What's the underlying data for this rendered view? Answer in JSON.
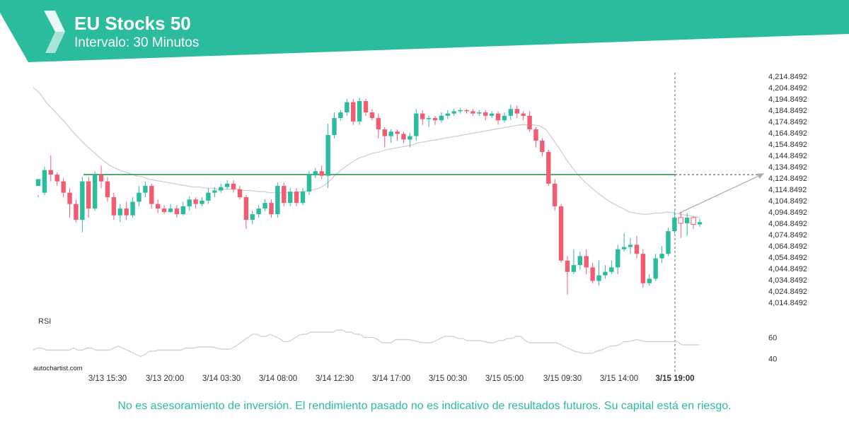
{
  "header": {
    "title": "EU Stocks 50",
    "subtitle": "Intervalo: 30 Minutos",
    "color": "#2bbb9d"
  },
  "footer": {
    "brand": "autochartist.com",
    "disclaimer": "No es asesoramiento de inversión. El rendimiento pasado no es indicativo de resultados futuros. Su capital está en riesgo."
  },
  "chart_data": {
    "type": "candlestick",
    "title": "EU Stocks 50",
    "subtitle": "Intervalo: 30 Minutos",
    "y_ticks": [
      "4,214.8492",
      "4,204.8492",
      "4,194.8492",
      "4,184.8492",
      "4,174.8492",
      "4,164.8492",
      "4,154.8492",
      "4,144.8492",
      "4,134.8492",
      "4,124.8492",
      "4,114.8492",
      "4,104.8492",
      "4,094.8492",
      "4,084.8492",
      "4,074.8492",
      "4,064.8492",
      "4,054.8492",
      "4,044.8492",
      "4,034.8492",
      "4,024.8492",
      "4,014.8492"
    ],
    "ylim": [
      4010,
      4218
    ],
    "x_ticks": [
      "3/13 15:30",
      "3/13 20:00",
      "3/14 03:30",
      "3/14 08:00",
      "3/14 12:30",
      "3/14 17:00",
      "3/15 00:30",
      "3/15 05:00",
      "3/15 09:30",
      "3/15 14:00",
      "3/15 19:00"
    ],
    "current_time_label": "3/15 19:00",
    "resistance_level": 4128,
    "projection": {
      "from": 4094,
      "to": 4129
    },
    "colors": {
      "up": "#2bbb9d",
      "down": "#f05c71",
      "level": "#3fa866",
      "ma": "#cccccc",
      "rsi": "#cccccc"
    },
    "candles": [
      [
        4118,
        4124,
        4110,
        4108
      ],
      [
        4112,
        4132,
        4135,
        4110
      ],
      [
        4132,
        4128,
        4145,
        4122
      ],
      [
        4128,
        4122,
        4130,
        4118
      ],
      [
        4122,
        4112,
        4125,
        4108
      ],
      [
        4112,
        4102,
        4116,
        4090
      ],
      [
        4102,
        4088,
        4106,
        4086
      ],
      [
        4088,
        4122,
        4126,
        4077
      ],
      [
        4122,
        4098,
        4126,
        4090
      ],
      [
        4098,
        4128,
        4131,
        4096
      ],
      [
        4128,
        4122,
        4136,
        4116
      ],
      [
        4122,
        4108,
        4126,
        4104
      ],
      [
        4108,
        4092,
        4112,
        4088
      ],
      [
        4092,
        4098,
        4102,
        4086
      ],
      [
        4098,
        4092,
        4104,
        4088
      ],
      [
        4092,
        4104,
        4108,
        4090
      ],
      [
        4104,
        4112,
        4118,
        4100
      ],
      [
        4112,
        4118,
        4122,
        4108
      ],
      [
        4118,
        4102,
        4120,
        4098
      ],
      [
        4102,
        4098,
        4106,
        4094
      ],
      [
        4098,
        4095,
        4101,
        4093
      ],
      [
        4095,
        4098,
        4102,
        4094
      ],
      [
        4098,
        4093,
        4101,
        4090
      ],
      [
        4093,
        4100,
        4104,
        4092
      ],
      [
        4100,
        4106,
        4109,
        4096
      ],
      [
        4106,
        4102,
        4108,
        4098
      ],
      [
        4102,
        4105,
        4108,
        4100
      ],
      [
        4105,
        4112,
        4116,
        4102
      ],
      [
        4112,
        4114,
        4117,
        4108
      ],
      [
        4114,
        4117,
        4120,
        4112
      ],
      [
        4117,
        4120,
        4123,
        4115
      ],
      [
        4120,
        4115,
        4123,
        4112
      ],
      [
        4115,
        4108,
        4118,
        4106
      ],
      [
        4108,
        4088,
        4110,
        4080
      ],
      [
        4088,
        4093,
        4096,
        4084
      ],
      [
        4093,
        4098,
        4101,
        4090
      ],
      [
        4098,
        4103,
        4106,
        4096
      ],
      [
        4103,
        4093,
        4106,
        4090
      ],
      [
        4093,
        4118,
        4121,
        4090
      ],
      [
        4118,
        4103,
        4121,
        4100
      ],
      [
        4103,
        4113,
        4116,
        4100
      ],
      [
        4113,
        4103,
        4116,
        4100
      ],
      [
        4103,
        4113,
        4116,
        4101
      ],
      [
        4113,
        4128,
        4131,
        4110
      ],
      [
        4128,
        4131,
        4134,
        4125
      ],
      [
        4131,
        4127,
        4136,
        4124
      ],
      [
        4127,
        4163,
        4173,
        4116
      ],
      [
        4163,
        4178,
        4183,
        4160
      ],
      [
        4178,
        4183,
        4185,
        4176
      ],
      [
        4183,
        4192,
        4195,
        4180
      ],
      [
        4192,
        4175,
        4195,
        4172
      ],
      [
        4175,
        4193,
        4196,
        4172
      ],
      [
        4193,
        4183,
        4195,
        4180
      ],
      [
        4183,
        4178,
        4186,
        4176
      ],
      [
        4178,
        4168,
        4182,
        4160
      ],
      [
        4168,
        4162,
        4170,
        4152
      ],
      [
        4162,
        4166,
        4168,
        4156
      ],
      [
        4166,
        4164,
        4168,
        4158
      ],
      [
        4164,
        4159,
        4166,
        4156
      ],
      [
        4159,
        4162,
        4165,
        4152
      ],
      [
        4162,
        4182,
        4186,
        4158
      ],
      [
        4182,
        4177,
        4185,
        4172
      ],
      [
        4177,
        4178,
        4180,
        4170
      ],
      [
        4178,
        4176,
        4180,
        4172
      ],
      [
        4176,
        4180,
        4183,
        4174
      ],
      [
        4180,
        4182,
        4185,
        4177
      ],
      [
        4182,
        4184,
        4186,
        4180
      ],
      [
        4184,
        4185,
        4187,
        4182
      ],
      [
        4185,
        4184,
        4186,
        4182
      ],
      [
        4184,
        4182,
        4186,
        4180
      ],
      [
        4182,
        4183,
        4185,
        4180
      ],
      [
        4183,
        4180,
        4185,
        4176
      ],
      [
        4180,
        4182,
        4184,
        4178
      ],
      [
        4182,
        4176,
        4184,
        4172
      ],
      [
        4176,
        4180,
        4183,
        4174
      ],
      [
        4180,
        4186,
        4190,
        4176
      ],
      [
        4186,
        4182,
        4189,
        4178
      ],
      [
        4182,
        4180,
        4184,
        4176
      ],
      [
        4180,
        4168,
        4184,
        4166
      ],
      [
        4168,
        4158,
        4170,
        4152
      ],
      [
        4158,
        4148,
        4160,
        4144
      ],
      [
        4148,
        4120,
        4150,
        4118
      ],
      [
        4120,
        4100,
        4124,
        4096
      ],
      [
        4100,
        4052,
        4102,
        4050
      ],
      [
        4052,
        4042,
        4056,
        4022
      ],
      [
        4042,
        4048,
        4062,
        4040
      ],
      [
        4048,
        4056,
        4060,
        4044
      ],
      [
        4056,
        4046,
        4062,
        4040
      ],
      [
        4046,
        4034,
        4050,
        4032
      ],
      [
        4034,
        4039,
        4052,
        4030
      ],
      [
        4039,
        4042,
        4048,
        4036
      ],
      [
        4042,
        4046,
        4052,
        4040
      ],
      [
        4046,
        4062,
        4066,
        4040
      ],
      [
        4062,
        4064,
        4076,
        4060
      ],
      [
        4064,
        4066,
        4072,
        4058
      ],
      [
        4066,
        4058,
        4074,
        4054
      ],
      [
        4058,
        4032,
        4062,
        4028
      ],
      [
        4032,
        4036,
        4040,
        4030
      ],
      [
        4036,
        4054,
        4058,
        4034
      ],
      [
        4054,
        4058,
        4065,
        4050
      ],
      [
        4058,
        4078,
        4081,
        4056
      ],
      [
        4078,
        4090,
        4096,
        4076
      ],
      [
        4090,
        4085,
        4095,
        4072
      ],
      [
        4085,
        4090,
        4094,
        4074
      ],
      [
        4090,
        4084,
        4091,
        4080
      ],
      [
        4084,
        4086,
        4089,
        4082
      ]
    ],
    "moving_average": [
      4205,
      4200,
      4192,
      4186,
      4180,
      4174,
      4167,
      4161,
      4155,
      4150,
      4145,
      4140,
      4136,
      4133,
      4131,
      4129,
      4127,
      4126,
      4124,
      4123,
      4122,
      4121,
      4120,
      4119,
      4118,
      4117,
      4117,
      4116,
      4116,
      4115,
      4115,
      4115,
      4115,
      4114,
      4114,
      4113,
      4113,
      4112,
      4112,
      4112,
      4112,
      4112,
      4113,
      4114,
      4115,
      4117,
      4121,
      4127,
      4132,
      4136,
      4140,
      4143,
      4145,
      4147,
      4148,
      4150,
      4151,
      4152,
      4153,
      4154,
      4156,
      4157,
      4158,
      4159,
      4160,
      4161,
      4162,
      4163,
      4164,
      4165,
      4166,
      4167,
      4168,
      4169,
      4170,
      4171,
      4172,
      4172,
      4172,
      4171,
      4168,
      4160,
      4152,
      4143,
      4135,
      4128,
      4122,
      4117,
      4112,
      4108,
      4104,
      4101,
      4098,
      4095,
      4094,
      4093,
      4093,
      4094,
      4094,
      4095,
      4094,
      4093,
      4092,
      4091,
      4090
    ],
    "rsi": {
      "label": "RSI",
      "ticks": [
        60,
        40
      ],
      "ylim": [
        35,
        75
      ],
      "values": [
        48,
        50,
        50,
        48,
        48,
        48,
        48,
        48,
        48,
        50,
        48,
        48,
        50,
        50,
        48,
        48,
        48,
        48,
        50,
        52,
        50,
        48,
        46,
        44,
        42,
        44,
        47,
        47,
        48,
        48,
        48,
        48,
        48,
        48,
        50,
        50,
        50,
        51,
        51,
        51,
        51,
        50,
        49,
        49,
        49,
        51,
        54,
        57,
        60,
        63,
        63,
        61,
        61,
        63,
        61,
        59,
        56,
        56,
        58,
        61,
        63,
        63,
        65,
        65,
        65,
        65,
        65,
        65,
        67,
        67,
        65,
        65,
        63,
        63,
        60,
        60,
        60,
        58,
        55,
        55,
        55,
        58,
        58,
        58,
        58,
        57,
        56,
        55,
        55,
        55,
        57,
        59,
        61,
        61,
        61,
        59,
        59,
        57,
        57,
        57,
        57,
        56,
        55,
        55,
        57,
        57,
        59,
        59,
        61,
        61,
        57,
        55,
        55,
        55,
        55,
        55,
        55,
        55,
        53,
        51,
        49,
        47,
        46,
        45,
        45,
        45,
        47,
        48,
        50,
        52,
        52,
        53,
        56,
        56,
        57,
        58,
        57,
        56,
        56,
        56,
        56,
        56,
        56,
        56,
        56,
        53,
        53,
        53,
        53,
        53
      ]
    }
  }
}
